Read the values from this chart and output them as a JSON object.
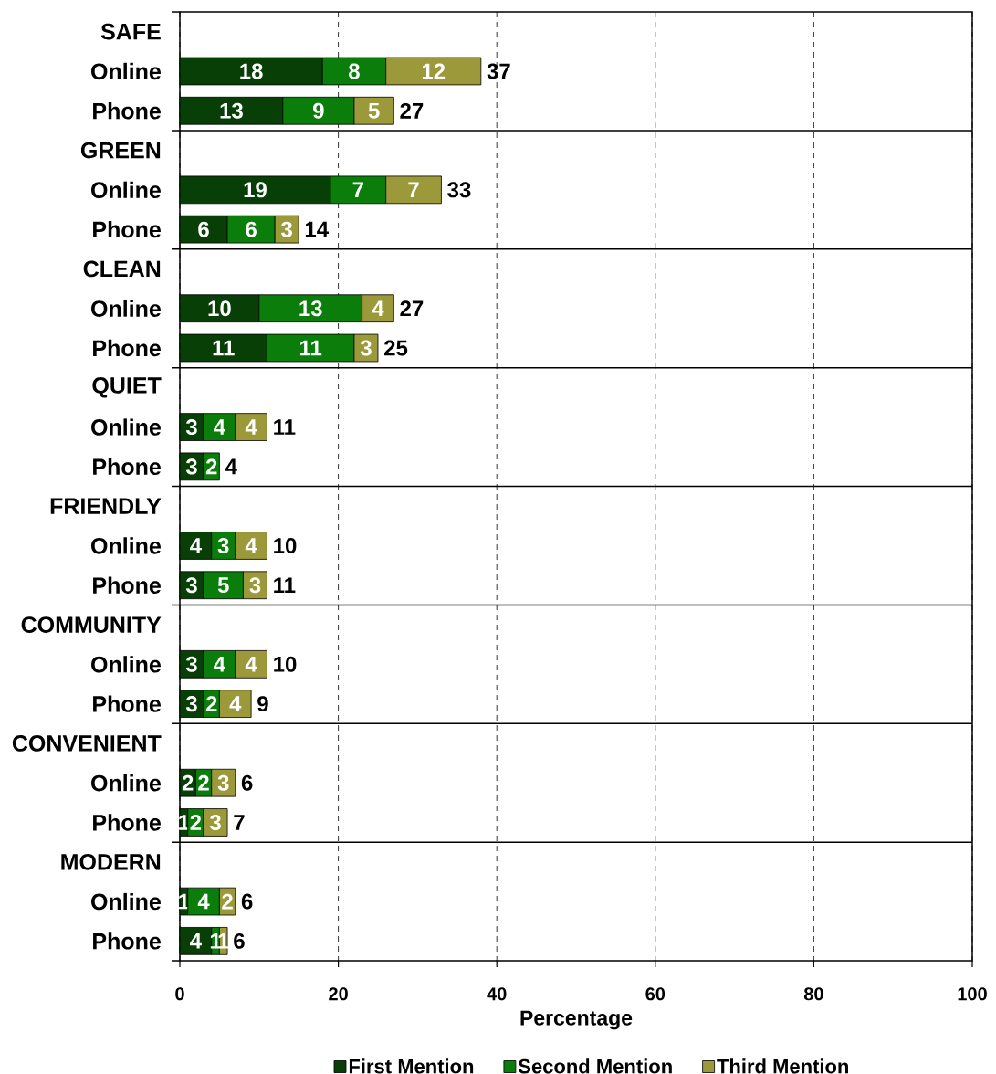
{
  "chart_data": {
    "type": "bar",
    "orientation": "horizontal",
    "stacked": true,
    "categories": [
      "SAFE",
      "Online",
      "Phone",
      "GREEN",
      "Online",
      "Phone",
      "CLEAN",
      "Online",
      "Phone",
      "QUIET",
      "Online",
      "Phone",
      "FRIENDLY",
      "Online",
      "Phone",
      "COMMUNITY",
      "Online",
      "Phone",
      "CONVENIENT",
      "Online",
      "Phone",
      "MODERN",
      "Online",
      "Phone"
    ],
    "series": [
      {
        "name": "First Mention",
        "color": "#073f07",
        "values": [
          null,
          18,
          13,
          null,
          19,
          6,
          null,
          10,
          11,
          null,
          3,
          3,
          null,
          4,
          3,
          null,
          3,
          3,
          null,
          2,
          1,
          null,
          1,
          4
        ]
      },
      {
        "name": "Second Mention",
        "color": "#0a7d0a",
        "values": [
          null,
          8,
          9,
          null,
          7,
          6,
          null,
          13,
          11,
          null,
          4,
          2,
          null,
          3,
          5,
          null,
          4,
          2,
          null,
          2,
          2,
          null,
          4,
          1
        ]
      },
      {
        "name": "Third Mention",
        "color": "#9c993a",
        "values": [
          null,
          12,
          5,
          null,
          7,
          3,
          null,
          4,
          3,
          null,
          4,
          null,
          null,
          4,
          3,
          null,
          4,
          4,
          null,
          3,
          3,
          null,
          2,
          1
        ]
      }
    ],
    "totals": [
      null,
      "37",
      "27",
      null,
      "33",
      "14",
      null,
      "27",
      "25",
      null,
      "11",
      "4",
      null,
      "10",
      "11",
      null,
      "10",
      "9",
      null,
      "6",
      "7",
      null,
      "6",
      "6"
    ],
    "data_labels": true,
    "xlabel": "Percentage",
    "xlim": [
      0,
      100
    ],
    "xticks": [
      0,
      20,
      40,
      60,
      80,
      100
    ],
    "grid": true,
    "legend": "bottom"
  }
}
